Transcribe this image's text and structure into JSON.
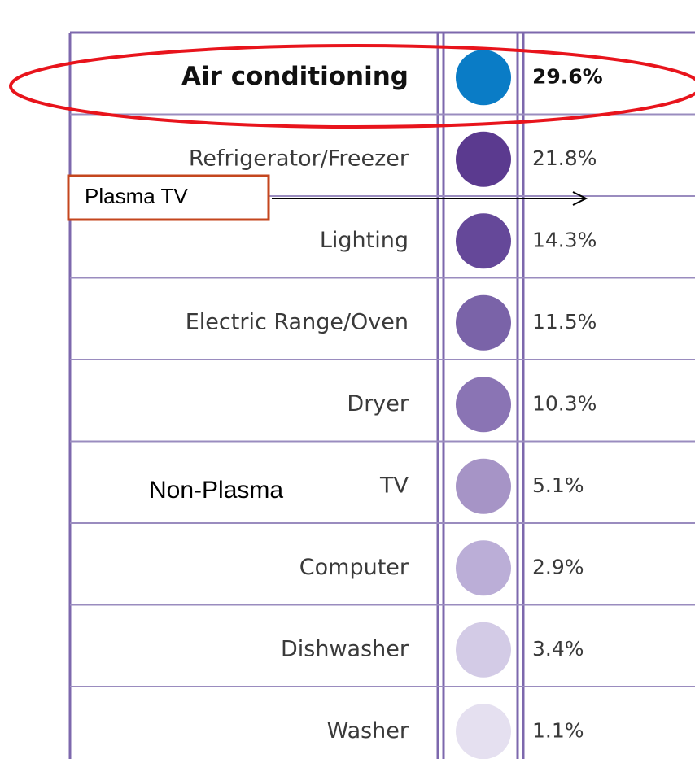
{
  "table": {
    "rows": [
      {
        "label": "Air conditioning",
        "dot_color": "#0a7cc6",
        "value": "29.6%"
      },
      {
        "label": "Refrigerator/Freezer",
        "dot_color": "#5b3a8f",
        "value": "21.8%"
      },
      {
        "label": "Lighting",
        "dot_color": "#654899",
        "value": "14.3%"
      },
      {
        "label": "Electric Range/Oven",
        "dot_color": "#7a63a8",
        "value": "11.5%"
      },
      {
        "label": "Dryer",
        "dot_color": "#8a74b4",
        "value": "10.3%"
      },
      {
        "label": "TV",
        "dot_color": "#a694c6",
        "value": "5.1%"
      },
      {
        "label": "Computer",
        "dot_color": "#bbaed7",
        "value": "2.9%"
      },
      {
        "label": "Dishwasher",
        "dot_color": "#d3cbe6",
        "value": "3.4%"
      },
      {
        "label": "Washer",
        "dot_color": "#e5e0f0",
        "value": "1.1%"
      }
    ]
  },
  "annotations": {
    "plasma_box": "Plasma TV",
    "non_plasma": "Non-Plasma"
  }
}
